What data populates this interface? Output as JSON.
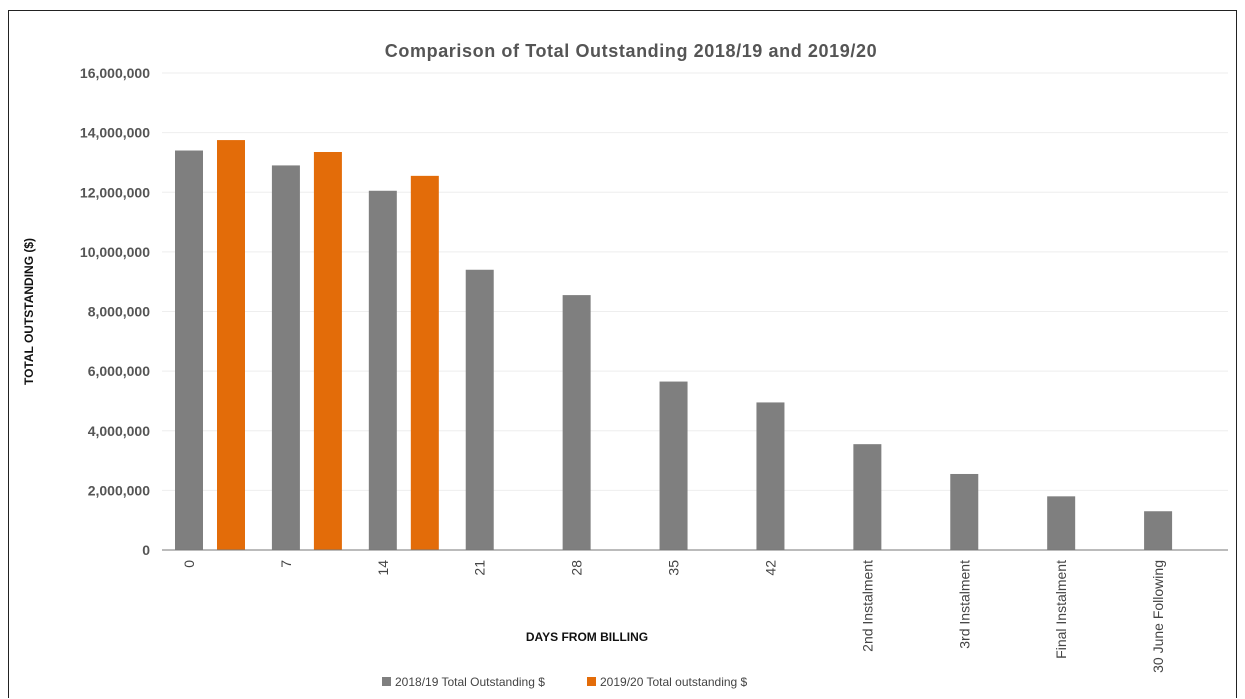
{
  "chart_data": {
    "type": "bar",
    "title": "Comparison of Total Outstanding 2018/19 and 2019/20",
    "xlabel": "DAYS FROM BILLING",
    "ylabel": "TOTAL OUTSTANDING ($)",
    "ylim": [
      0,
      16000000
    ],
    "yticks": [
      0,
      2000000,
      4000000,
      6000000,
      8000000,
      10000000,
      12000000,
      14000000,
      16000000
    ],
    "ytick_labels": [
      "0",
      "2,000,000",
      "4,000,000",
      "6,000,000",
      "8,000,000",
      "10,000,000",
      "12,000,000",
      "14,000,000",
      "16,000,000"
    ],
    "grid": true,
    "legend_position": "bottom",
    "categories": [
      "0",
      "7",
      "14",
      "21",
      "28",
      "35",
      "42",
      "2nd Instalment",
      "3rd Instalment",
      "Final Instalment",
      "30 June Following"
    ],
    "series": [
      {
        "name": "2018/19 Total Outstanding $",
        "color": "#7f7f7f",
        "values": [
          13400000,
          12900000,
          12050000,
          9400000,
          8550000,
          5650000,
          4950000,
          3550000,
          2550000,
          1800000,
          1300000
        ]
      },
      {
        "name": "2019/20 Total outstanding $",
        "color": "#e36c09",
        "values": [
          13750000,
          13350000,
          12550000,
          null,
          null,
          null,
          null,
          null,
          null,
          null,
          null
        ]
      }
    ]
  }
}
